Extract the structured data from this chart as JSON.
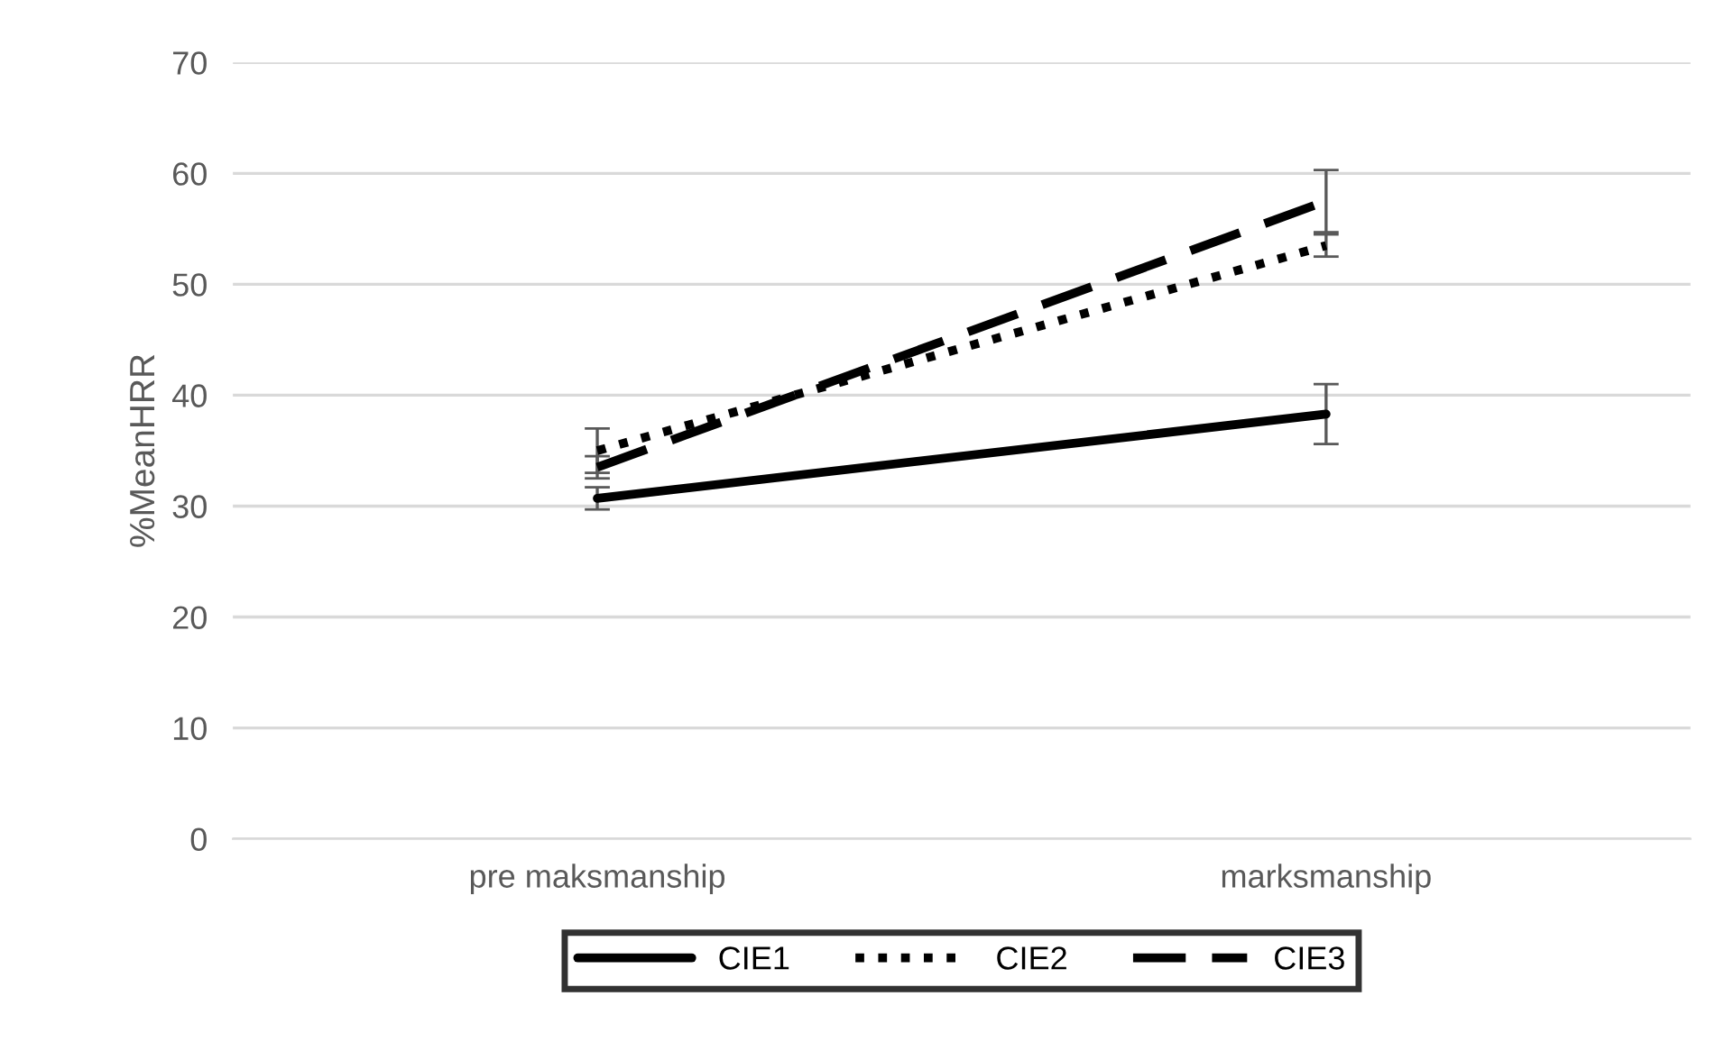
{
  "chart_data": {
    "type": "line",
    "ylabel": "%MeanHRR",
    "categories": [
      "pre maksmanship",
      "marksmanship"
    ],
    "series": [
      {
        "name": "CIE1",
        "color": "#000000",
        "line_style": "solid",
        "values": [
          30.7,
          38.3
        ],
        "errors": [
          1.0,
          2.7
        ]
      },
      {
        "name": "CIE2",
        "color": "#000000",
        "line_style": "dotted",
        "values": [
          35.0,
          53.5
        ],
        "errors": [
          2.0,
          1.0
        ]
      },
      {
        "name": "CIE3",
        "color": "#000000",
        "line_style": "dashed",
        "values": [
          33.5,
          57.5
        ],
        "errors": [
          1.0,
          2.8
        ]
      }
    ],
    "ylim": [
      0,
      70
    ],
    "yticks": [
      0,
      10,
      20,
      30,
      40,
      50,
      60,
      70
    ],
    "grid": "y",
    "legend": "bottom",
    "marker": "none"
  }
}
